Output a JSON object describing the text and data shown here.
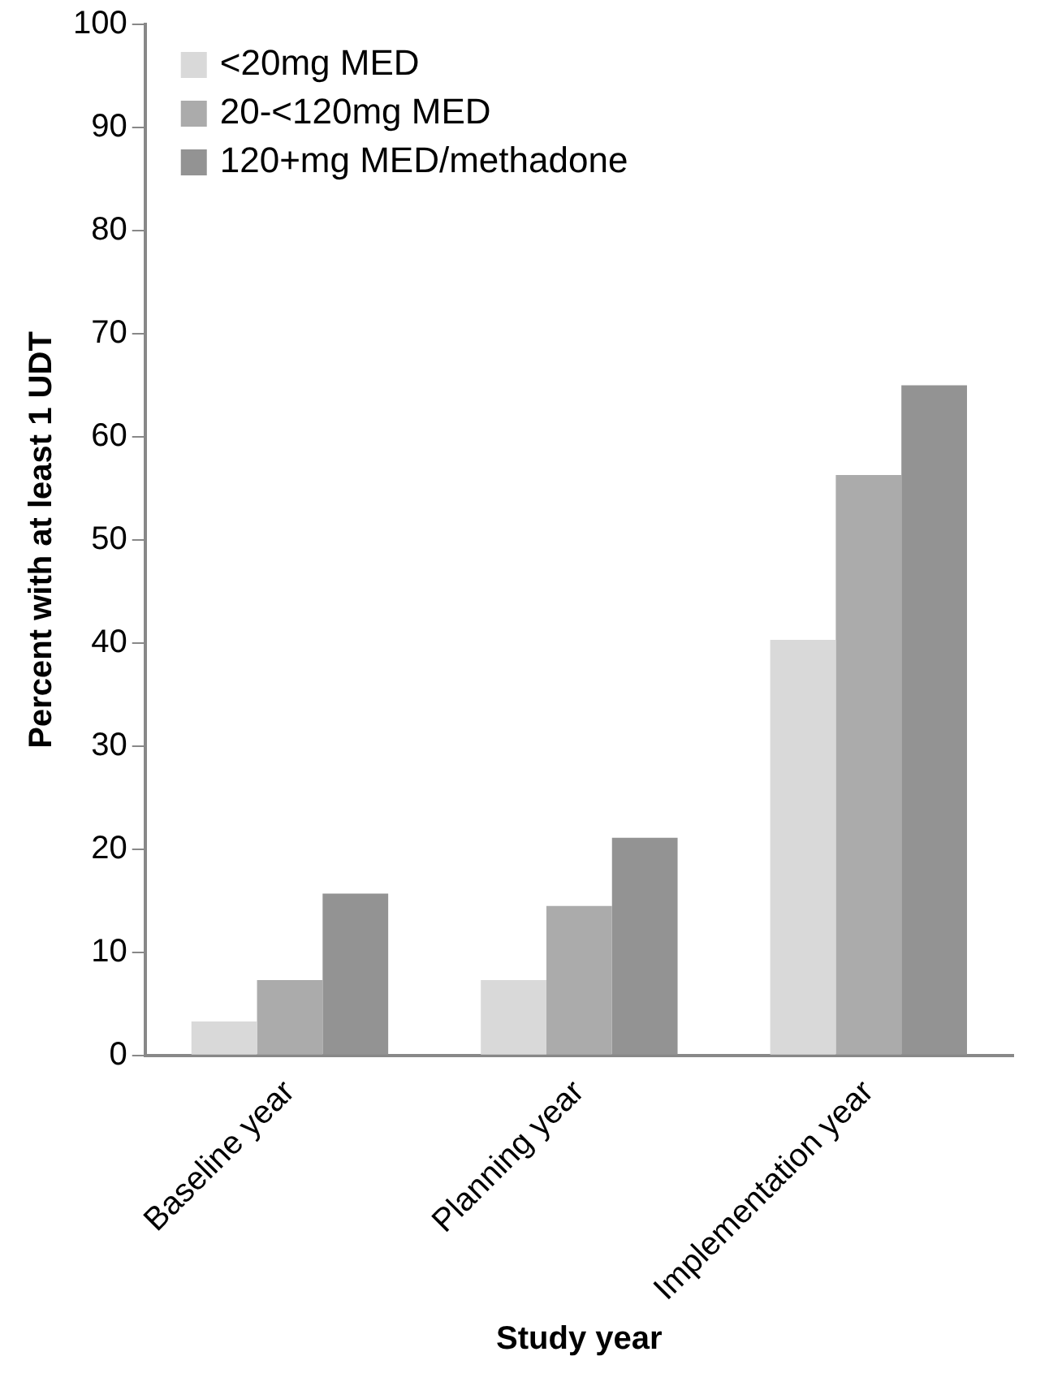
{
  "chart_data": {
    "type": "bar",
    "xlabel": "Study year",
    "ylabel": "Percent with at least 1 UDT",
    "categories": [
      "Baseline year",
      "Planning year",
      "Implementation year"
    ],
    "series": [
      {
        "name": "<20mg MED",
        "color": "#d9d9d9",
        "values": [
          3.3,
          7.3,
          40.3
        ]
      },
      {
        "name": "20-<120mg MED",
        "color": "#ababab",
        "values": [
          7.3,
          14.5,
          56.3
        ]
      },
      {
        "name": "120+mg MED/methadone",
        "color": "#939393",
        "values": [
          15.7,
          21.1,
          65
        ]
      }
    ],
    "ylim": [
      0,
      100
    ],
    "yticks": [
      0,
      10,
      20,
      30,
      40,
      50,
      60,
      70,
      80,
      90,
      100
    ],
    "grid": false,
    "legend": "top left"
  }
}
